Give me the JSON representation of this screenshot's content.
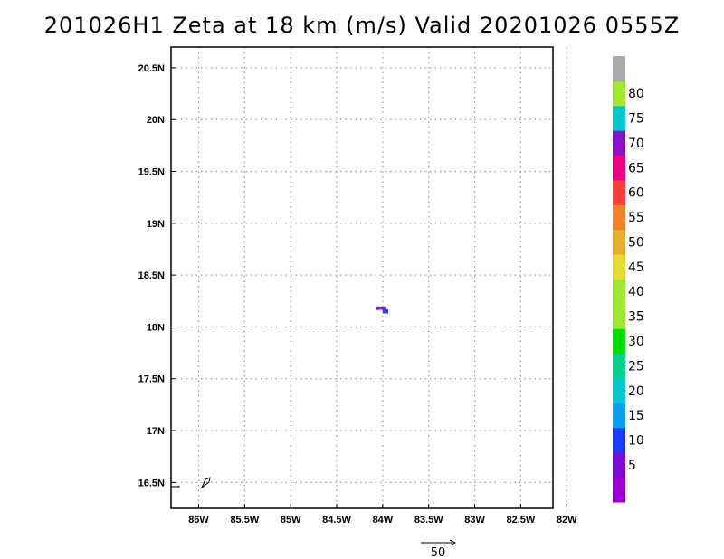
{
  "title": "201026H1 Zeta at 18 km (m/s) Valid 20201026 0555Z",
  "map": {
    "lon_range": [
      -86.3,
      -82.15
    ],
    "lat_range": [
      16.25,
      20.7
    ],
    "x_ticks": [
      {
        "value": -86.0,
        "label": "86W"
      },
      {
        "value": -85.5,
        "label": "85.5W"
      },
      {
        "value": -85.0,
        "label": "85W"
      },
      {
        "value": -84.5,
        "label": "84.5W"
      },
      {
        "value": -84.0,
        "label": "84W"
      },
      {
        "value": -83.5,
        "label": "83.5W"
      },
      {
        "value": -83.0,
        "label": "83W"
      },
      {
        "value": -82.5,
        "label": "82.5W"
      },
      {
        "value": -82.0,
        "label": "82W"
      }
    ],
    "y_ticks": [
      {
        "value": 16.5,
        "label": "16.5N"
      },
      {
        "value": 17.0,
        "label": "17N"
      },
      {
        "value": 17.5,
        "label": "17.5N"
      },
      {
        "value": 18.0,
        "label": "18N"
      },
      {
        "value": 18.5,
        "label": "18.5N"
      },
      {
        "value": 19.0,
        "label": "19N"
      },
      {
        "value": 19.5,
        "label": "19.5N"
      },
      {
        "value": 20.0,
        "label": "20N"
      },
      {
        "value": 20.5,
        "label": "20.5N"
      }
    ],
    "grid": "dotted",
    "wind_patches": [
      {
        "lon": -84.02,
        "lat": 18.18,
        "w": 0.1,
        "h": 0.035,
        "color": "#8a1ad6"
      },
      {
        "lon": -83.97,
        "lat": 18.15,
        "w": 0.06,
        "h": 0.04,
        "color": "#2f3df0"
      },
      {
        "lon": -84.03,
        "lat": 18.165,
        "w": 0.03,
        "h": 0.015,
        "color": "#aaaaaa"
      }
    ]
  },
  "colorbar": {
    "levels": [
      {
        "color": "#a000d6",
        "label": ""
      },
      {
        "color": "#7e0ad6",
        "label": "5"
      },
      {
        "color": "#1e3cff",
        "label": "10"
      },
      {
        "color": "#0aa0f0",
        "label": "15"
      },
      {
        "color": "#00c8c8",
        "label": "20"
      },
      {
        "color": "#00d28c",
        "label": "25"
      },
      {
        "color": "#00dc00",
        "label": "30"
      },
      {
        "color": "#a0e632",
        "label": "35"
      },
      {
        "color": "#a0e632",
        "label": "40"
      },
      {
        "color": "#e6dc32",
        "label": "45"
      },
      {
        "color": "#e6af2d",
        "label": "50"
      },
      {
        "color": "#f08228",
        "label": "55"
      },
      {
        "color": "#fa3c3c",
        "label": "60"
      },
      {
        "color": "#f00082",
        "label": "65"
      },
      {
        "color": "#8c14c8",
        "label": "70"
      },
      {
        "color": "#00c8c8",
        "label": "75"
      },
      {
        "color": "#a0e632",
        "label": "80"
      },
      {
        "color": "#aaaaaa",
        "label": ""
      }
    ]
  },
  "vector_key": {
    "label": "50"
  }
}
